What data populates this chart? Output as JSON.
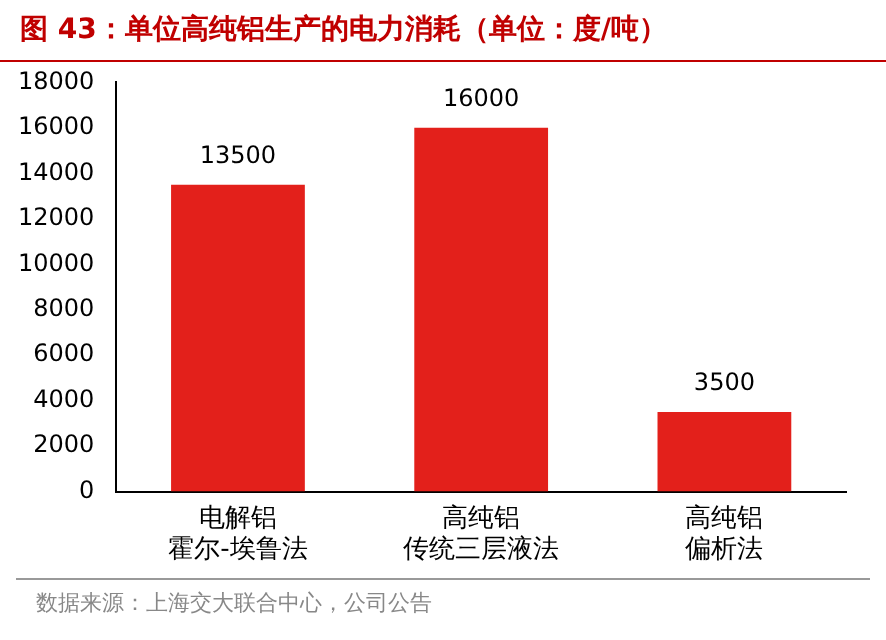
{
  "chart_data": {
    "type": "bar",
    "title": "图 43：单位高纯铝生产的电力消耗（单位：度/吨）",
    "categories": [
      "电解铝霍尔-埃鲁法",
      "高纯铝传统三层液法",
      "高纯铝偏析法"
    ],
    "values": [
      13500,
      16000,
      3500
    ],
    "color": "#e3201b",
    "ylim": [
      0,
      18000
    ],
    "yticks": [
      0,
      2000,
      4000,
      6000,
      8000,
      10000,
      12000,
      14000,
      16000,
      18000
    ],
    "grid": false,
    "legend": false,
    "data_labels": true,
    "annotations": [
      "数据来源：上海交大联合中心，公司公告"
    ]
  }
}
